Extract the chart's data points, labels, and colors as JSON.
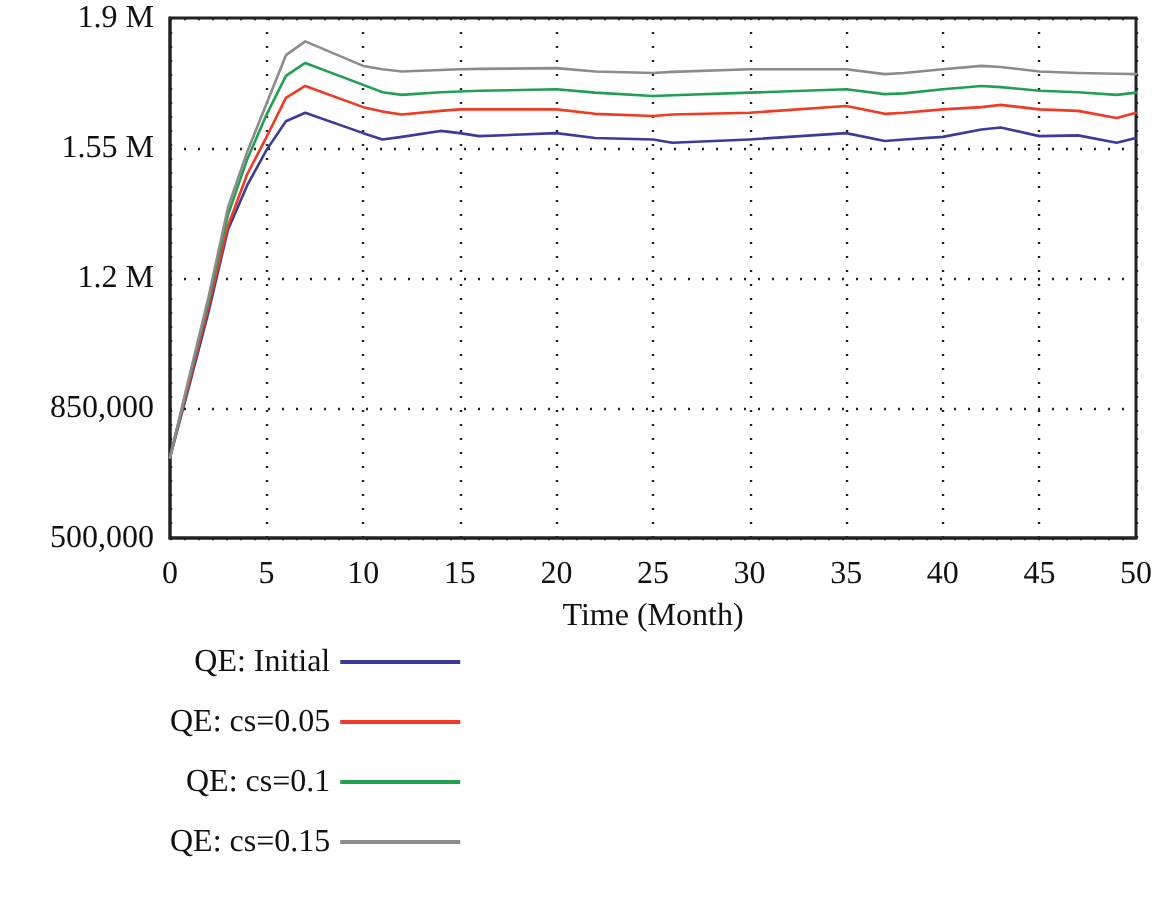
{
  "chart_data": {
    "type": "line",
    "xlabel": "Time (Month)",
    "x": [
      0,
      1,
      2,
      3,
      4,
      5,
      6,
      7,
      10,
      11,
      12,
      14,
      15,
      16,
      20,
      22,
      25,
      26,
      30,
      35,
      37,
      38,
      40,
      42,
      43,
      45,
      47,
      49,
      50
    ],
    "series": [
      {
        "name": "QE: Initial",
        "color": "#3b3b9c",
        "values": [
          717000,
          911000,
          1110000,
          1330000,
          1450000,
          1545000,
          1622000,
          1645000,
          1590000,
          1573000,
          1580000,
          1596000,
          1590000,
          1582000,
          1590000,
          1577000,
          1573000,
          1564000,
          1573000,
          1590000,
          1569000,
          1573000,
          1580000,
          1600000,
          1605000,
          1582000,
          1584000,
          1564000,
          1577000
        ]
      },
      {
        "name": "QE: cs=0.05",
        "color": "#f03a24",
        "values": [
          717000,
          920000,
          1125000,
          1340000,
          1480000,
          1580000,
          1685000,
          1717000,
          1660000,
          1648000,
          1640000,
          1650000,
          1654000,
          1654000,
          1654000,
          1642000,
          1636000,
          1640000,
          1645000,
          1663000,
          1642000,
          1645000,
          1654000,
          1660000,
          1666000,
          1654000,
          1650000,
          1631000,
          1645000
        ]
      },
      {
        "name": "QE: cs=0.1",
        "color": "#20a050",
        "values": [
          717000,
          930000,
          1140000,
          1370000,
          1520000,
          1640000,
          1744000,
          1779000,
          1720000,
          1700000,
          1693000,
          1700000,
          1702000,
          1704000,
          1708000,
          1699000,
          1690000,
          1692000,
          1699000,
          1708000,
          1695000,
          1697000,
          1708000,
          1717000,
          1714000,
          1704000,
          1700000,
          1693000,
          1699000
        ]
      },
      {
        "name": "QE: cs=0.15",
        "color": "#8c8c8c",
        "values": [
          717000,
          935000,
          1150000,
          1390000,
          1540000,
          1670000,
          1800000,
          1837000,
          1771000,
          1762000,
          1756000,
          1760000,
          1762000,
          1763000,
          1765000,
          1756000,
          1752000,
          1755000,
          1762000,
          1762000,
          1749000,
          1752000,
          1762000,
          1771000,
          1768000,
          1756000,
          1752000,
          1750000,
          1749000
        ]
      }
    ],
    "xlim": [
      0,
      50
    ],
    "xticks": [
      0,
      5,
      10,
      15,
      20,
      25,
      30,
      35,
      40,
      45,
      50
    ],
    "ylim": [
      500000,
      1900000
    ],
    "yticks": [
      {
        "value": 500000,
        "label": "500,000"
      },
      {
        "value": 850000,
        "label": "850,000"
      },
      {
        "value": 1200000,
        "label": "1.2 M"
      },
      {
        "value": 1550000,
        "label": "1.55 M"
      },
      {
        "value": 1900000,
        "label": "1.9 M"
      }
    ],
    "grid": true,
    "legend": "bottom left",
    "marker": "none",
    "line_style": "solid"
  }
}
